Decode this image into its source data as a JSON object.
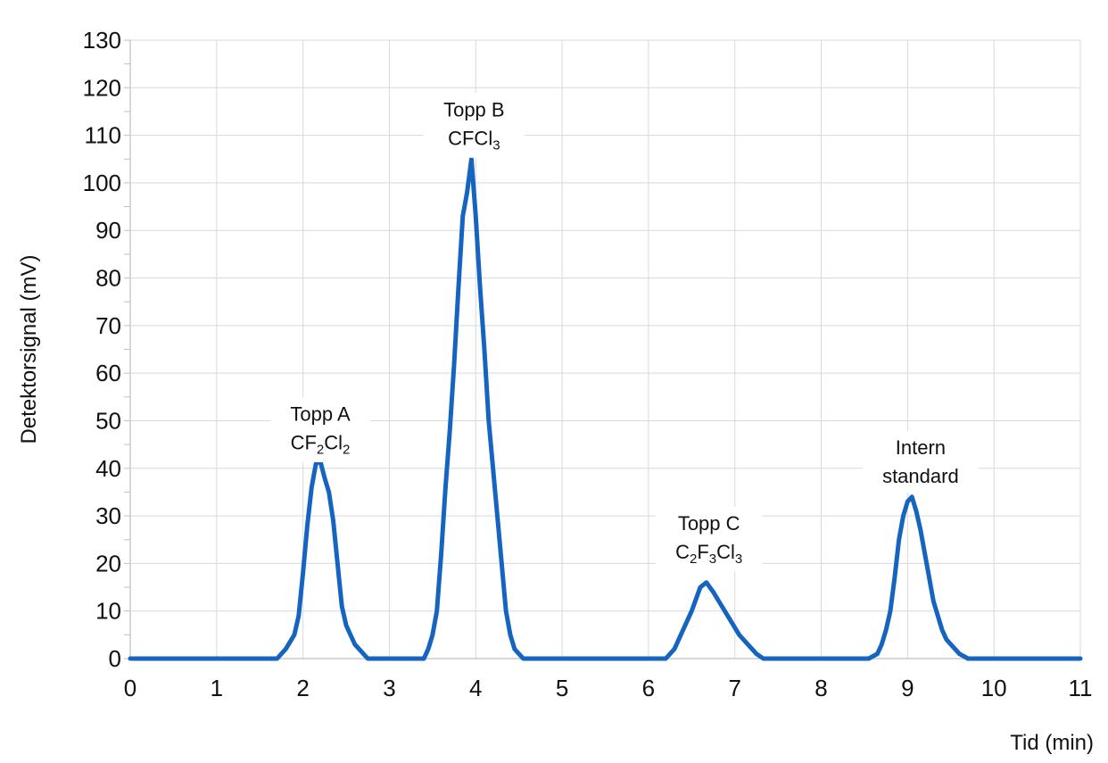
{
  "chart_data": {
    "type": "line",
    "xlabel": "Tid (min)",
    "ylabel": "Detektorsignal (mV)",
    "xlim": [
      0,
      11
    ],
    "ylim": [
      0,
      130
    ],
    "x_ticks": [
      0,
      1,
      2,
      3,
      4,
      5,
      6,
      7,
      8,
      9,
      10,
      11
    ],
    "y_ticks": [
      0,
      10,
      20,
      30,
      40,
      50,
      60,
      70,
      80,
      90,
      100,
      110,
      120,
      130
    ],
    "grid": true,
    "series": [
      {
        "color": "#1565c0",
        "points": [
          [
            0,
            0
          ],
          [
            1.7,
            0
          ],
          [
            1.8,
            2
          ],
          [
            1.85,
            3.5
          ],
          [
            1.9,
            5
          ],
          [
            1.95,
            9
          ],
          [
            2.0,
            18
          ],
          [
            2.05,
            28
          ],
          [
            2.1,
            36
          ],
          [
            2.15,
            41
          ],
          [
            2.2,
            41.5
          ],
          [
            2.25,
            38
          ],
          [
            2.3,
            35
          ],
          [
            2.35,
            29
          ],
          [
            2.4,
            20
          ],
          [
            2.45,
            11
          ],
          [
            2.5,
            7
          ],
          [
            2.55,
            5
          ],
          [
            2.6,
            3
          ],
          [
            2.65,
            2
          ],
          [
            2.7,
            1
          ],
          [
            2.75,
            0
          ],
          [
            3.4,
            0
          ],
          [
            3.45,
            2
          ],
          [
            3.5,
            5
          ],
          [
            3.55,
            10
          ],
          [
            3.6,
            22
          ],
          [
            3.65,
            36
          ],
          [
            3.7,
            48
          ],
          [
            3.75,
            62
          ],
          [
            3.8,
            78
          ],
          [
            3.85,
            93
          ],
          [
            3.9,
            98
          ],
          [
            3.95,
            105
          ],
          [
            4.0,
            93
          ],
          [
            4.05,
            78
          ],
          [
            4.1,
            65
          ],
          [
            4.15,
            50
          ],
          [
            4.2,
            40
          ],
          [
            4.25,
            30
          ],
          [
            4.3,
            20
          ],
          [
            4.35,
            10
          ],
          [
            4.4,
            5
          ],
          [
            4.45,
            2
          ],
          [
            4.5,
            1
          ],
          [
            4.55,
            0
          ],
          [
            6.2,
            0
          ],
          [
            6.3,
            2
          ],
          [
            6.4,
            6
          ],
          [
            6.5,
            10
          ],
          [
            6.6,
            15
          ],
          [
            6.67,
            16
          ],
          [
            6.75,
            14
          ],
          [
            6.85,
            11
          ],
          [
            6.95,
            8
          ],
          [
            7.05,
            5
          ],
          [
            7.15,
            3
          ],
          [
            7.25,
            1
          ],
          [
            7.33,
            0
          ],
          [
            8.55,
            0
          ],
          [
            8.65,
            1
          ],
          [
            8.7,
            3
          ],
          [
            8.75,
            6
          ],
          [
            8.8,
            10
          ],
          [
            8.85,
            17
          ],
          [
            8.9,
            25
          ],
          [
            8.95,
            30
          ],
          [
            9.0,
            33
          ],
          [
            9.05,
            34
          ],
          [
            9.1,
            31
          ],
          [
            9.15,
            27
          ],
          [
            9.2,
            22
          ],
          [
            9.25,
            17
          ],
          [
            9.3,
            12
          ],
          [
            9.35,
            9
          ],
          [
            9.4,
            6
          ],
          [
            9.45,
            4
          ],
          [
            9.5,
            3
          ],
          [
            9.55,
            2
          ],
          [
            9.6,
            1
          ],
          [
            9.7,
            0
          ],
          [
            11,
            0
          ]
        ]
      }
    ],
    "annotations": [
      {
        "x": 2.2,
        "y": 44,
        "lines": [
          {
            "parts": [
              {
                "t": "Topp A"
              }
            ]
          },
          {
            "parts": [
              {
                "t": "CF"
              },
              {
                "t": "2",
                "sub": true
              },
              {
                "t": "Cl"
              },
              {
                "t": "2",
                "sub": true
              }
            ]
          }
        ]
      },
      {
        "x": 3.98,
        "y": 108,
        "lines": [
          {
            "parts": [
              {
                "t": "Topp B"
              }
            ]
          },
          {
            "parts": [
              {
                "t": "CFCl"
              },
              {
                "t": "3",
                "sub": true
              }
            ]
          }
        ]
      },
      {
        "x": 6.7,
        "y": 21,
        "lines": [
          {
            "parts": [
              {
                "t": "Topp C"
              }
            ]
          },
          {
            "parts": [
              {
                "t": "C"
              },
              {
                "t": "2",
                "sub": true
              },
              {
                "t": "F"
              },
              {
                "t": "3",
                "sub": true
              },
              {
                "t": "Cl"
              },
              {
                "t": "3",
                "sub": true
              }
            ]
          }
        ]
      },
      {
        "x": 9.15,
        "y": 37,
        "lines": [
          {
            "parts": [
              {
                "t": "Intern"
              }
            ]
          },
          {
            "parts": [
              {
                "t": "standard"
              }
            ]
          }
        ]
      }
    ]
  }
}
